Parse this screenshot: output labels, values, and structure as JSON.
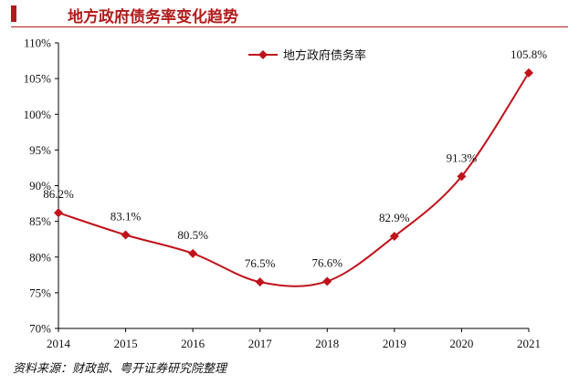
{
  "title": "地方政府债务率变化趋势",
  "source": "资料来源：财政部、粤开证券研究院整理",
  "colors": {
    "accent": "#b11b1b",
    "series": "#c0121a",
    "axis": "#000000",
    "text": "#111111"
  },
  "chart_data": {
    "type": "line",
    "title": "地方政府债务率变化趋势",
    "x": [
      "2014",
      "2015",
      "2016",
      "2017",
      "2018",
      "2019",
      "2020",
      "2021"
    ],
    "series": [
      {
        "name": "地方政府债务率",
        "values": [
          86.2,
          83.1,
          80.5,
          76.5,
          76.6,
          82.9,
          91.3,
          105.8
        ],
        "labels": [
          "86.2%",
          "83.1%",
          "80.5%",
          "76.5%",
          "76.6%",
          "82.9%",
          "91.3%",
          "105.8%"
        ]
      }
    ],
    "ylim": [
      70,
      110
    ],
    "yticks": [
      70,
      75,
      80,
      85,
      90,
      95,
      100,
      105,
      110
    ],
    "ytick_labels": [
      "70%",
      "75%",
      "80%",
      "85%",
      "90%",
      "95%",
      "100%",
      "105%",
      "110%"
    ],
    "marker": "diamond",
    "smooth": true,
    "grid": false,
    "legend": "top-center"
  }
}
